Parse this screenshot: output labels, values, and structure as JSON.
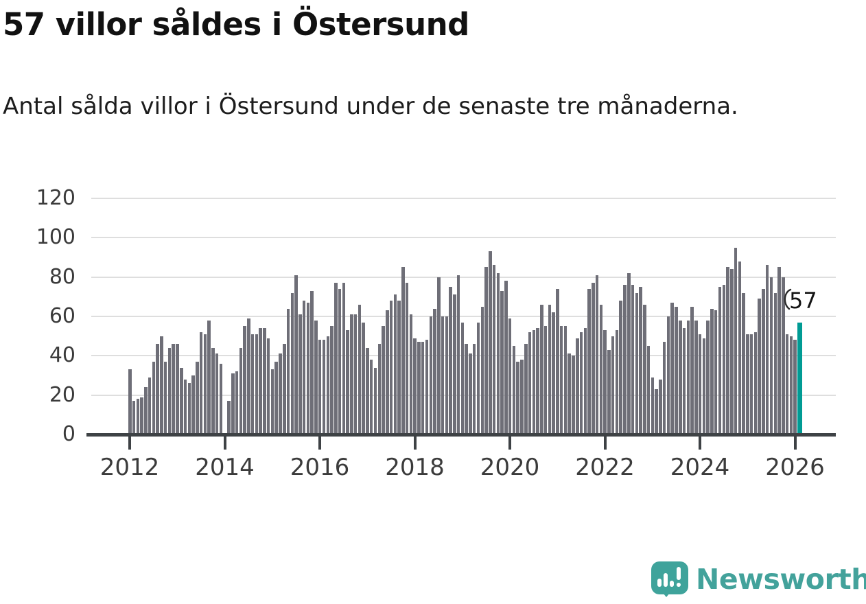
{
  "header": {
    "title": "57 villor såldes i Östersund",
    "subtitle": "Antal sålda villor i Östersund under de senaste tre månaderna."
  },
  "annotation": {
    "value_label": "57"
  },
  "footer": {
    "brand": "Newsworthy",
    "logo_icon": "speech-bubble-bar-chart-icon"
  },
  "colors": {
    "bar": "#6E6E77",
    "highlight": "#009B94",
    "grid": "#DEDEDE",
    "axis": "#3E4245",
    "tick_label": "#3B3B3B",
    "title_text": "#111111",
    "logo_teal": "#3FA39B"
  },
  "chart_data": {
    "type": "bar",
    "title": "57 villor såldes i Östersund",
    "subtitle": "Antal sålda villor i Östersund under de senaste tre månaderna.",
    "xlabel": "",
    "ylabel": "",
    "x_start": "2012-01",
    "x_end": "2026-02",
    "ylim": [
      0,
      125
    ],
    "grid": true,
    "y_ticks": [
      0,
      20,
      40,
      60,
      80,
      100,
      120
    ],
    "x_tick_years": [
      2012,
      2014,
      2016,
      2018,
      2020,
      2022,
      2024,
      2026
    ],
    "legend": "none",
    "highlight_last": true,
    "highlight_value": 57,
    "highlight_note": "last bar drawn in teal, annotated 57",
    "values_by_year": {
      "2012": [
        33,
        17,
        18,
        19,
        24,
        29,
        37,
        46,
        50,
        37,
        44,
        46
      ],
      "2013": [
        46,
        34,
        28,
        26,
        30,
        37,
        52,
        51,
        58,
        44,
        41,
        36
      ],
      "2014": [
        0,
        17,
        31,
        32,
        44,
        55,
        59,
        51,
        51,
        54,
        54,
        49
      ],
      "2015": [
        33,
        37,
        41,
        46,
        64,
        72,
        81,
        61,
        68,
        67,
        73,
        58
      ],
      "2016": [
        48,
        48,
        50,
        55,
        77,
        74,
        77,
        53,
        61,
        61,
        66,
        57
      ],
      "2017": [
        44,
        38,
        34,
        46,
        55,
        63,
        68,
        71,
        68,
        85,
        77,
        61
      ],
      "2018": [
        49,
        47,
        47,
        48,
        60,
        64,
        80,
        60,
        60,
        75,
        71,
        81
      ],
      "2019": [
        57,
        46,
        41,
        46,
        57,
        65,
        85,
        93,
        86,
        82,
        73,
        78
      ],
      "2020": [
        59,
        45,
        37,
        38,
        46,
        52,
        53,
        54,
        66,
        55,
        66,
        62
      ],
      "2021": [
        74,
        55,
        55,
        41,
        40,
        49,
        52,
        54,
        74,
        77,
        81,
        66
      ],
      "2022": [
        53,
        43,
        50,
        53,
        68,
        76,
        82,
        76,
        72,
        75,
        66,
        45
      ],
      "2023": [
        29,
        23,
        28,
        47,
        60,
        67,
        65,
        58,
        54,
        58,
        65,
        58
      ],
      "2024": [
        51,
        49,
        58,
        64,
        63,
        75,
        76,
        85,
        84,
        95,
        88,
        72
      ],
      "2025": [
        51,
        51,
        52,
        69,
        74,
        86,
        80,
        72,
        85,
        80,
        51,
        50
      ],
      "2026": [
        48,
        57
      ]
    }
  }
}
